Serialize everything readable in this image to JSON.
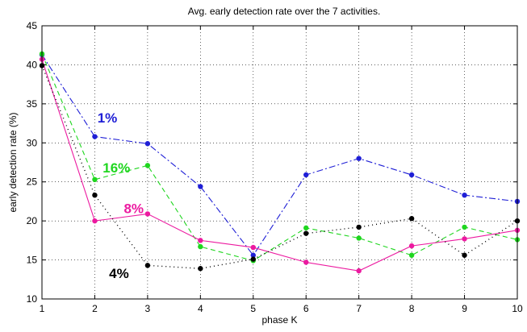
{
  "chart_data": {
    "type": "line",
    "title": "Avg. early detection rate over the 7 activities.",
    "xlabel": "phase K",
    "ylabel": "early detection rate (%)",
    "xlim": [
      1,
      10
    ],
    "ylim": [
      10,
      45
    ],
    "xticks": [
      1,
      2,
      3,
      4,
      5,
      6,
      7,
      8,
      9,
      10
    ],
    "yticks": [
      10,
      15,
      20,
      25,
      30,
      35,
      40,
      45
    ],
    "grid": true,
    "x": [
      1,
      2,
      3,
      4,
      5,
      6,
      7,
      8,
      9,
      10
    ],
    "series": [
      {
        "name": "1%",
        "color": "#1f1fd6",
        "dash": "dashdot",
        "values": [
          41.3,
          30.8,
          29.9,
          24.4,
          15.6,
          25.9,
          28.0,
          25.9,
          23.3,
          22.5
        ]
      },
      {
        "name": "16%",
        "color": "#1fd61f",
        "dash": "dashed",
        "values": [
          41.4,
          25.3,
          27.1,
          16.7,
          14.9,
          19.1,
          17.8,
          15.6,
          19.2,
          17.6
        ]
      },
      {
        "name": "8%",
        "color": "#ec1aa0",
        "dash": "solid",
        "values": [
          40.7,
          20.0,
          20.9,
          17.5,
          16.6,
          14.7,
          13.6,
          16.8,
          17.7,
          18.8
        ]
      },
      {
        "name": "4%",
        "color": "#000000",
        "dash": "dotted",
        "values": [
          39.9,
          23.3,
          14.3,
          13.9,
          15.1,
          18.4,
          19.2,
          20.3,
          15.6,
          20.0
        ]
      }
    ],
    "annotations": [
      {
        "text": "1%",
        "color": "#1f1fd6",
        "x": 2.05,
        "y": 32.6
      },
      {
        "text": "16%",
        "color": "#1fd61f",
        "x": 2.15,
        "y": 26.2
      },
      {
        "text": "8%",
        "color": "#ec1aa0",
        "x": 2.55,
        "y": 21.0
      },
      {
        "text": "4%",
        "color": "#000000",
        "x": 2.27,
        "y": 12.7
      }
    ]
  }
}
